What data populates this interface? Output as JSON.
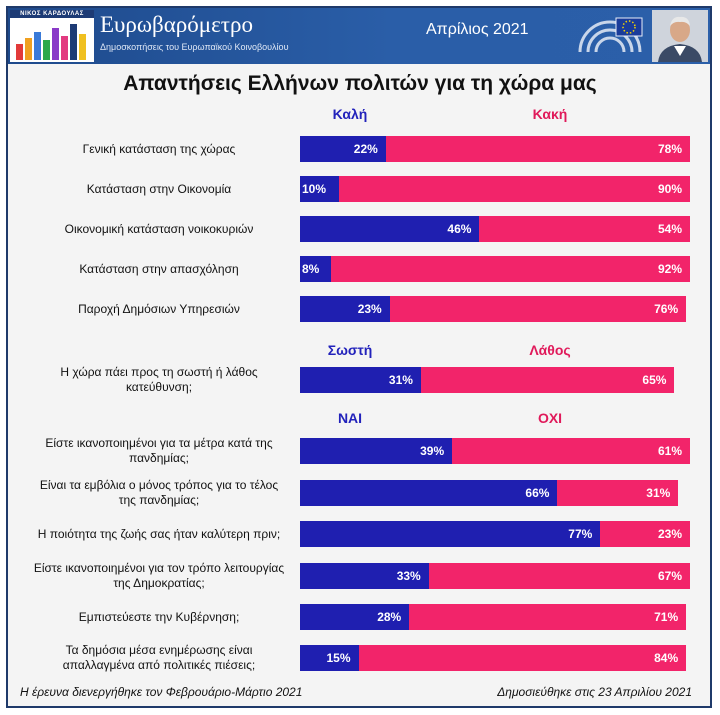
{
  "header": {
    "logo_author": "ΝΙΚΟΣ ΚΑΡΔΟΥΛΑΣ",
    "brand_title": "Ευρωβαρόμετρο",
    "brand_subtitle": "Δημοσκοπήσεις του Ευρωπαϊκού Κοινοβουλίου",
    "date": "Απρίλιος 2021",
    "colors": {
      "bar": "#2b5fa9"
    }
  },
  "footer": {
    "left": "Η έρευνα διενεργήθηκε τον Φεβρουάριο-Μάρτιο 2021",
    "right": "Δημοσιεύθηκε στις 23 Απριλίου 2021"
  },
  "chart_data": {
    "type": "bar",
    "orientation": "horizontal-stacked",
    "title": "Απαντήσεις Ελλήνων πολιτών για τη χώρα μας",
    "colors": {
      "positive": "#1f1fb0",
      "negative": "#f2246a"
    },
    "groups": [
      {
        "positive_label": "Καλή",
        "negative_label": "Κακή",
        "items": [
          {
            "label": "Γενική κατάσταση της χώρας",
            "positive": 22,
            "negative": 78
          },
          {
            "label": "Κατάσταση στην Οικονομία",
            "positive": 10,
            "negative": 90
          },
          {
            "label": "Οικονομική κατάσταση νοικοκυριών",
            "positive": 46,
            "negative": 54
          },
          {
            "label": "Κατάσταση στην απασχόληση",
            "positive": 8,
            "negative": 92
          },
          {
            "label": "Παροχή Δημόσιων Υπηρεσιών",
            "positive": 23,
            "negative": 76
          }
        ]
      },
      {
        "positive_label": "Σωστή",
        "negative_label": "Λάθος",
        "items": [
          {
            "label": "Η χώρα πάει προς τη σωστή ή λάθος κατεύθυνση;",
            "positive": 31,
            "negative": 65
          }
        ]
      },
      {
        "positive_label": "ΝΑΙ",
        "negative_label": "ΟΧΙ",
        "items": [
          {
            "label": "Είστε ικανοποιημένοι για τα μέτρα κατά της πανδημίας;",
            "positive": 39,
            "negative": 61
          },
          {
            "label": "Είναι τα εμβόλια ο μόνος τρόπος για το τέλος της πανδημίας;",
            "positive": 66,
            "negative": 31
          },
          {
            "label": "Η ποιότητα της ζωής σας ήταν καλύτερη πριν;",
            "positive": 77,
            "negative": 23
          },
          {
            "label": "Είστε ικανοποιημένοι για τον τρόπο λειτουργίας της Δημοκρατίας;",
            "positive": 33,
            "negative": 67
          },
          {
            "label": "Εμπιστεύεστε την Κυβέρνηση;",
            "positive": 28,
            "negative": 71
          },
          {
            "label": "Τα δημόσια μέσα ενημέρωσης είναι απαλλαγμένα από πολιτικές πιέσεις;",
            "positive": 15,
            "negative": 84
          }
        ]
      }
    ]
  }
}
